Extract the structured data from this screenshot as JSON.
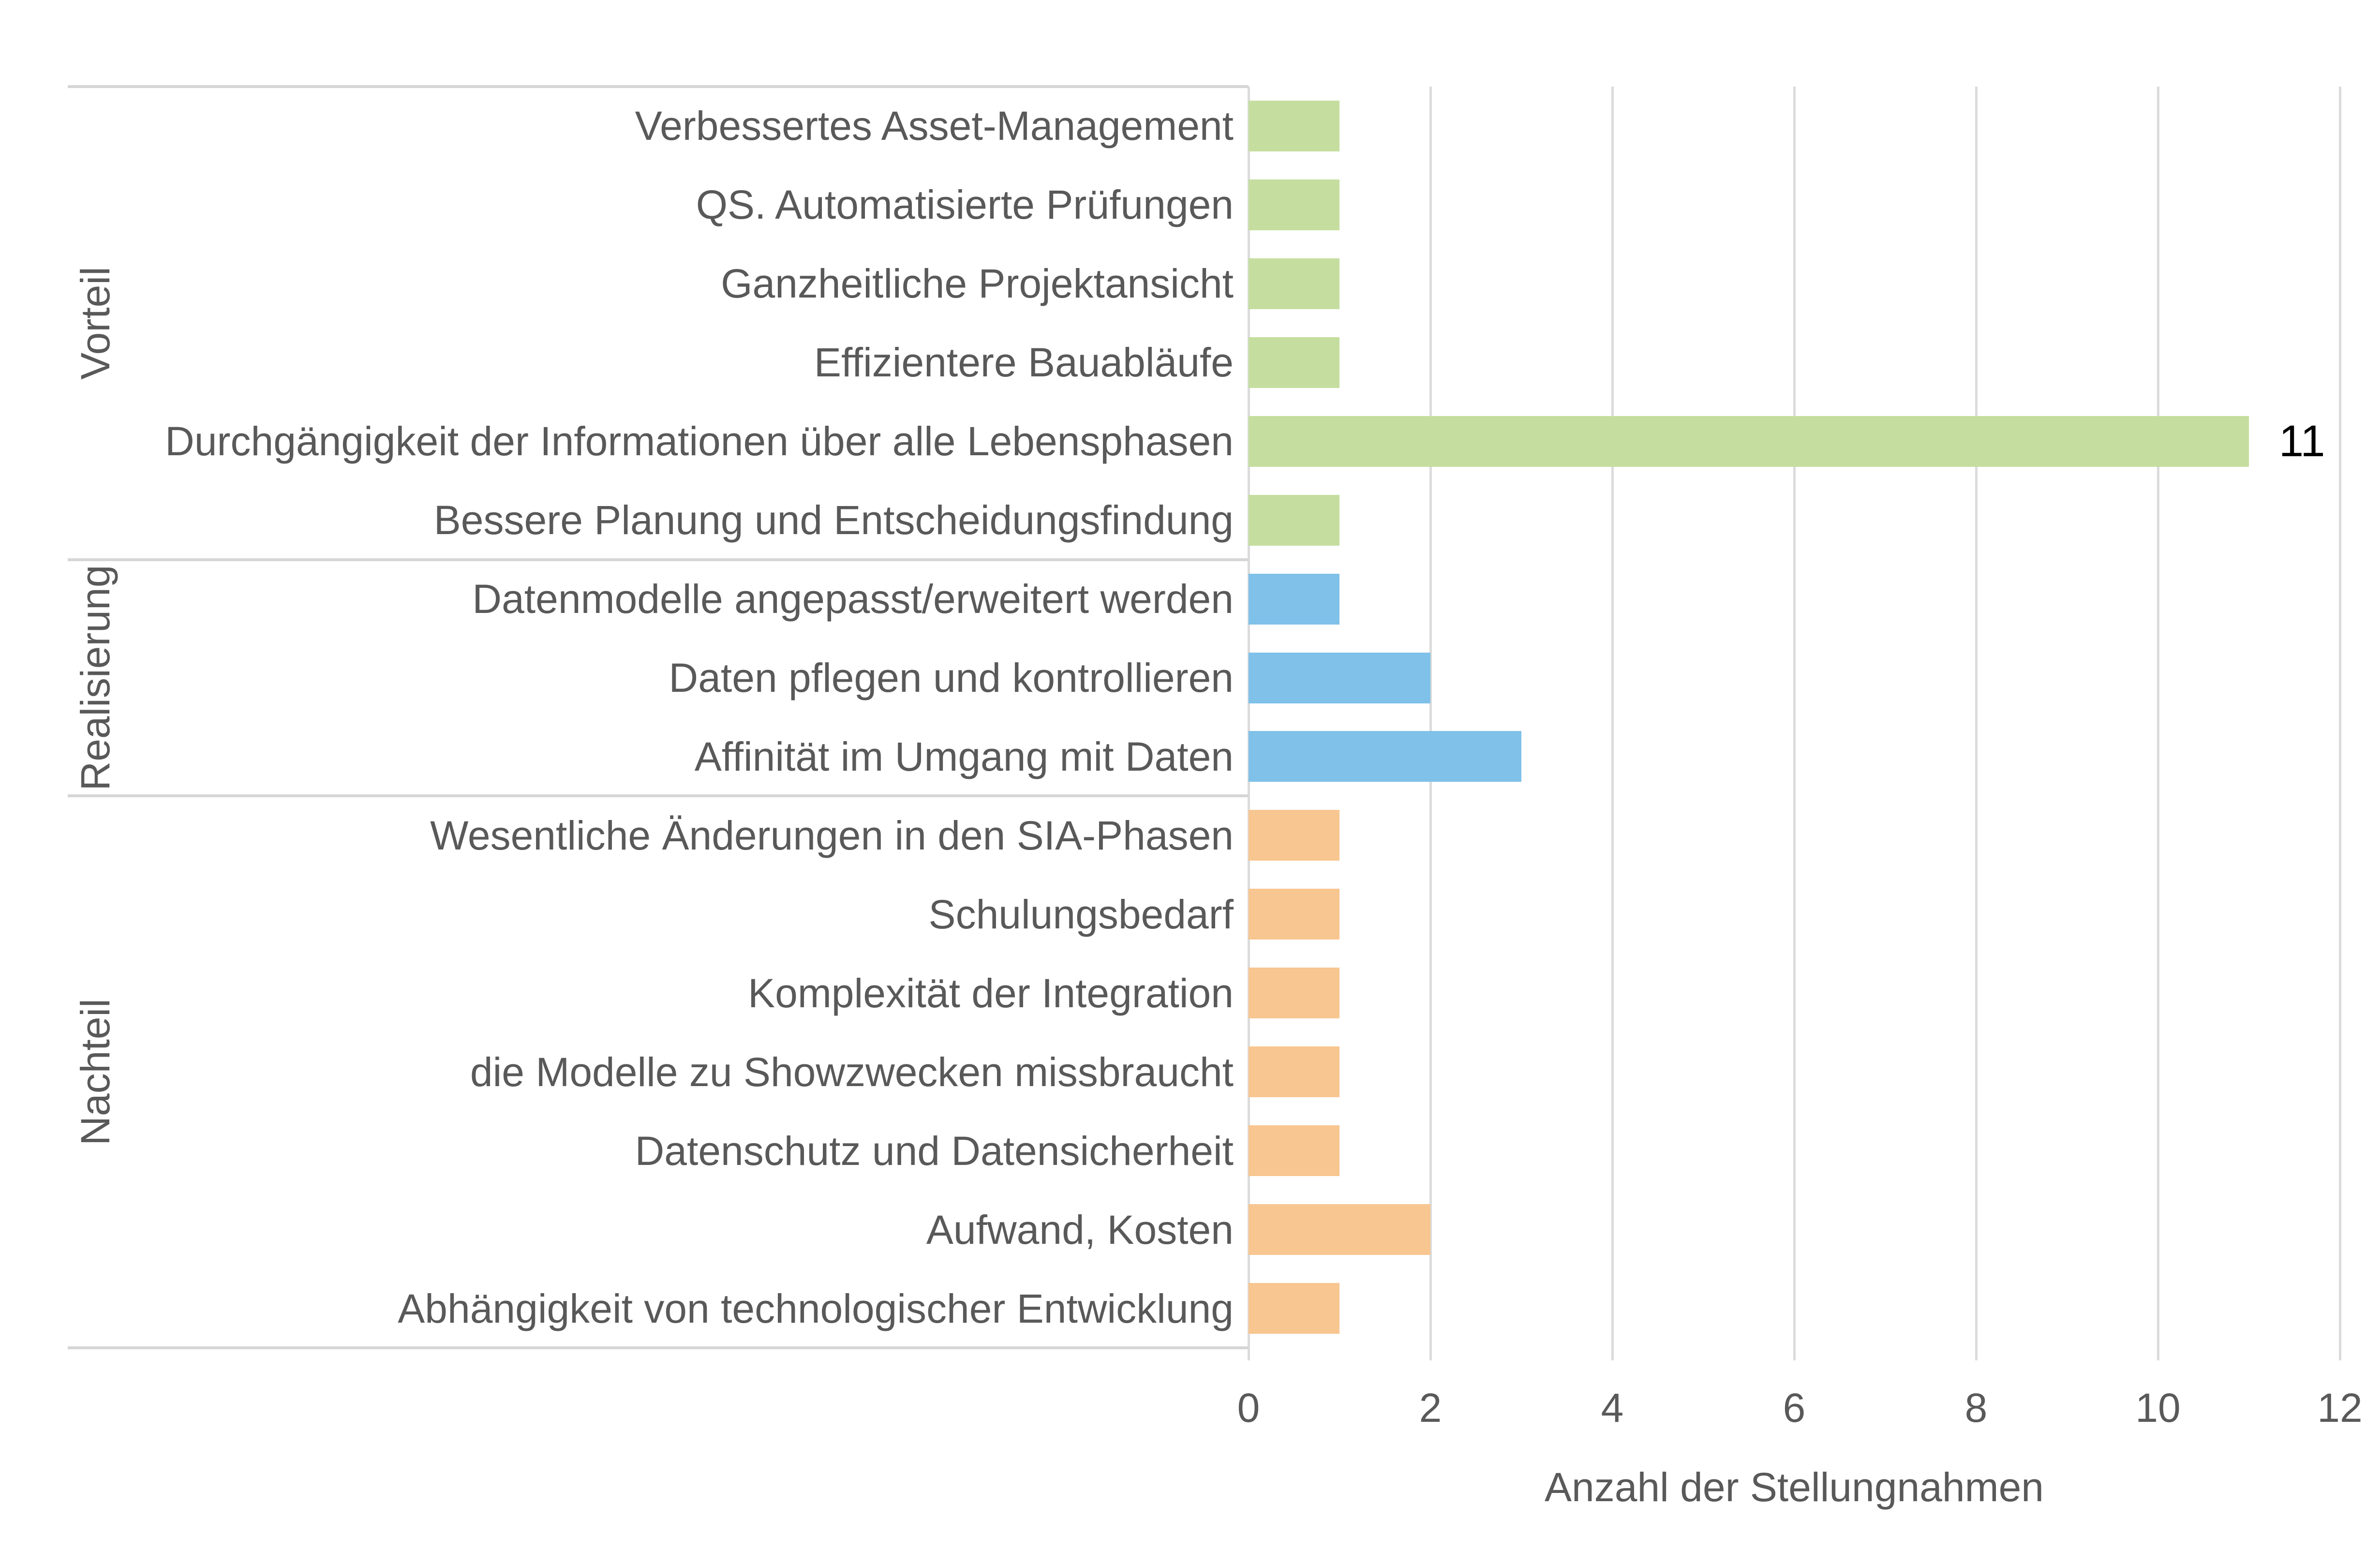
{
  "chart_data": {
    "type": "bar",
    "orientation": "horizontal",
    "xlabel": "Anzahl der Stellungnahmen",
    "xlim": [
      0,
      12
    ],
    "xticks": [
      "0",
      "2",
      "4",
      "6",
      "8",
      "10",
      "12"
    ],
    "grid": "vertical",
    "legend": "none",
    "groups": [
      {
        "name": "Vorteil",
        "color": "#C5DE9F",
        "items": [
          {
            "label": "Verbessertes Asset-Management",
            "value": 1,
            "show_label": false
          },
          {
            "label": "QS. Automatisierte Prüfungen",
            "value": 1,
            "show_label": false
          },
          {
            "label": "Ganzheitliche Projektansicht",
            "value": 1,
            "show_label": false
          },
          {
            "label": "Effizientere Bauabläufe",
            "value": 1,
            "show_label": false
          },
          {
            "label": "Durchgängigkeit der Informationen über alle Lebensphasen",
            "value": 11,
            "show_label": true,
            "value_label": "11"
          },
          {
            "label": "Bessere Planung und Entscheidungsfindung",
            "value": 1,
            "show_label": false
          }
        ]
      },
      {
        "name": "Realisierung",
        "color": "#7FC1E9",
        "items": [
          {
            "label": "Datenmodelle angepasst/erweitert werden",
            "value": 1,
            "show_label": false
          },
          {
            "label": "Daten pflegen und kontrollieren",
            "value": 2,
            "show_label": false
          },
          {
            "label": "Affinität im Umgang mit Daten",
            "value": 3,
            "show_label": false
          }
        ]
      },
      {
        "name": "Nachteil",
        "color": "#F8C690",
        "items": [
          {
            "label": "Wesentliche Änderungen in den SIA-Phasen",
            "value": 1,
            "show_label": false
          },
          {
            "label": "Schulungsbedarf",
            "value": 1,
            "show_label": false
          },
          {
            "label": "Komplexität der Integration",
            "value": 1,
            "show_label": false
          },
          {
            "label": "die Modelle zu Showzwecken missbraucht",
            "value": 1,
            "show_label": false
          },
          {
            "label": "Datenschutz und Datensicherheit",
            "value": 1,
            "show_label": false
          },
          {
            "label": "Aufwand, Kosten",
            "value": 2,
            "show_label": false
          },
          {
            "label": "Abhängigkeit von technologischer Entwicklung",
            "value": 1,
            "show_label": false
          }
        ]
      }
    ],
    "colors": {
      "vorteil_bar": "#C5DE9F",
      "realisierung_bar": "#7FC1E9",
      "nachteil_bar": "#F8C690",
      "gridline": "#DBDBDB",
      "separator": "#D6D6D6",
      "text": "#595959",
      "data_label_text": "#000000",
      "background": "#FFFFFF"
    }
  }
}
